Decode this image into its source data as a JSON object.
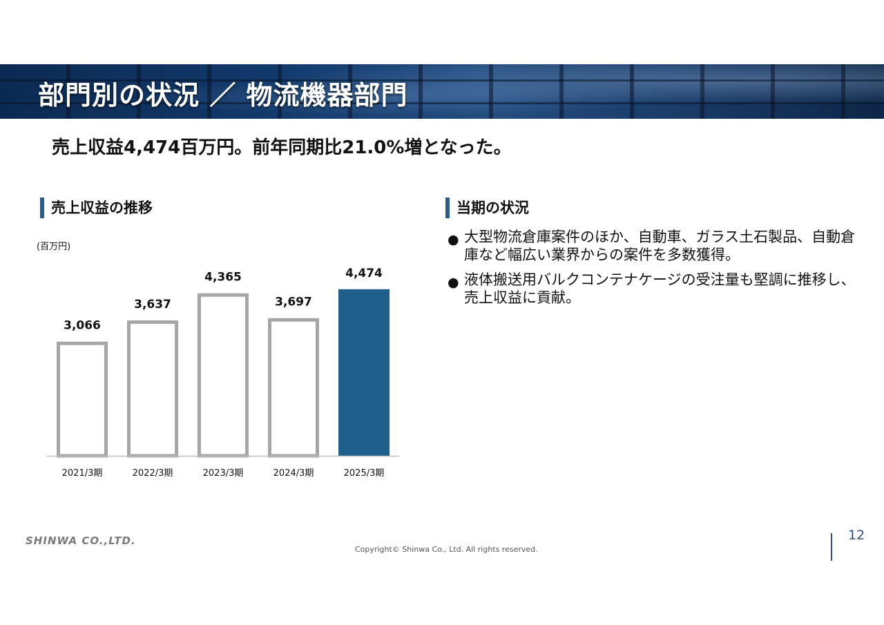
{
  "header": {
    "title": "部門別の状況 ／ 物流機器部門"
  },
  "headline": "売上収益4,474百万円。前年同期比21.0%増となった。",
  "left_section": {
    "title": "売上収益の推移",
    "unit": "(百万円)"
  },
  "right_section": {
    "title": "当期の状況",
    "bullets": [
      "大型物流倉庫案件のほか、自動車、ガラス土石製品、自動倉庫など幅広い業界からの案件を多数獲得。",
      "液体搬送用バルクコンテナケージの受注量も堅調に推移し、売上収益に貢献。"
    ],
    "bullet_icon": "●"
  },
  "chart_data": {
    "type": "bar",
    "categories": [
      "2021/3期",
      "2022/3期",
      "2023/3期",
      "2024/3期",
      "2025/3期"
    ],
    "values": [
      3066,
      3637,
      4365,
      3697,
      4474
    ],
    "data_labels": [
      "3,066",
      "3,637",
      "4,365",
      "3,697",
      "4,474"
    ],
    "ylim": [
      0,
      4600
    ],
    "highlight_index": 4,
    "colors": {
      "outline": "#a6a6a6",
      "highlight": "#1f5f8b",
      "axis": "#bfbfbf"
    },
    "grid": false,
    "legend": false
  },
  "footer": {
    "logo": "SHINWA CO.,LTD.",
    "copyright": "Copyright© Shinwa Co., Ltd. All rights reserved.",
    "page_number": "12"
  }
}
